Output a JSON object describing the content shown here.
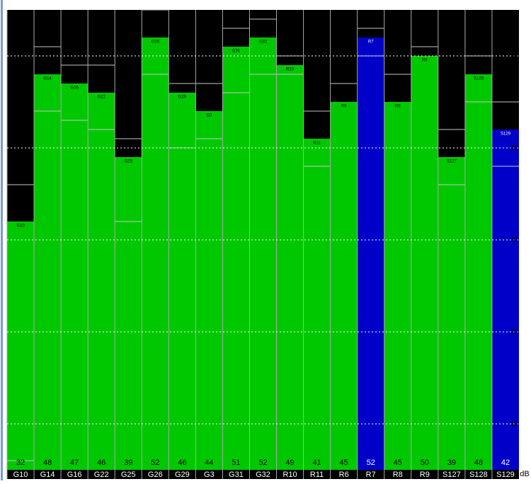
{
  "chart_data": {
    "type": "bar",
    "categories": [
      "G10",
      "G14",
      "G16",
      "G22",
      "G25",
      "G26",
      "G29",
      "G3",
      "G31",
      "G32",
      "R10",
      "R11",
      "R6",
      "R7",
      "R8",
      "R9",
      "S127",
      "S128",
      "S129"
    ],
    "values": [
      32,
      48,
      47,
      46,
      39,
      52,
      46,
      44,
      51,
      52,
      49,
      41,
      45,
      52,
      45,
      50,
      39,
      48,
      42
    ],
    "colors": [
      "#00c800",
      "#00c800",
      "#00c800",
      "#00c800",
      "#00c800",
      "#00c800",
      "#00c800",
      "#00c800",
      "#00c800",
      "#00c800",
      "#00c800",
      "#00c800",
      "#00c800",
      "#0000c8",
      "#00c800",
      "#00c800",
      "#00c800",
      "#00c800",
      "#0000c8"
    ],
    "peak": [
      36,
      51,
      49,
      49,
      41,
      55,
      47,
      47,
      53,
      54,
      50,
      44,
      47,
      53,
      48,
      51,
      42,
      50,
      45
    ],
    "low": [
      6,
      44,
      43,
      42,
      32,
      48,
      40,
      41,
      46,
      48,
      48,
      38,
      null,
      50,
      null,
      null,
      36,
      45,
      38
    ],
    "ylim": [
      5,
      55
    ],
    "yticks": [
      10,
      20,
      30,
      40,
      50
    ],
    "y_unit": "dB",
    "grid": true
  }
}
